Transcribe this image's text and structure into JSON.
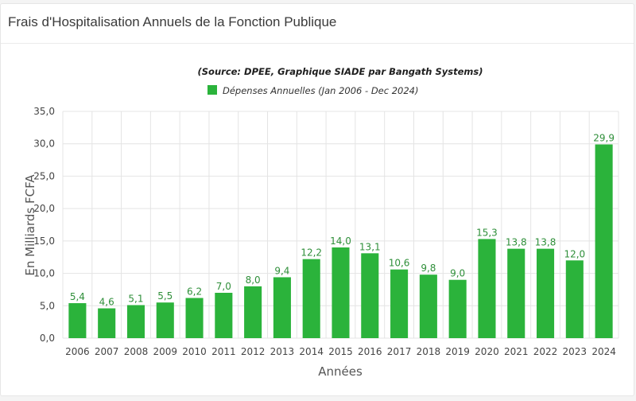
{
  "header": {
    "title": "Frais d'Hospitalisation Annuels de la Fonction Publique"
  },
  "chart_data": {
    "type": "bar",
    "subtitle": "(Source: DPEE, Graphique SIADE par Bangath Systems)",
    "legend": {
      "label": "Dépenses Annuelles (Jan 2006 - Dec 2024)",
      "position": "top"
    },
    "categories": [
      "2006",
      "2007",
      "2008",
      "2009",
      "2010",
      "2011",
      "2012",
      "2013",
      "2014",
      "2015",
      "2016",
      "2017",
      "2018",
      "2019",
      "2020",
      "2021",
      "2022",
      "2023",
      "2024"
    ],
    "series": [
      {
        "name": "Dépenses Annuelles (Jan 2006 - Dec 2024)",
        "values": [
          5.4,
          4.6,
          5.1,
          5.5,
          6.2,
          7.0,
          8.0,
          9.4,
          12.2,
          14.0,
          13.1,
          10.6,
          9.8,
          9.0,
          15.3,
          13.8,
          13.8,
          12.0,
          29.9
        ],
        "labels": [
          "5,4",
          "4,6",
          "5,1",
          "5,5",
          "6,2",
          "7,0",
          "8,0",
          "9,4",
          "12,2",
          "14,0",
          "13,1",
          "10,6",
          "9,8",
          "9,0",
          "15,3",
          "13,8",
          "13,8",
          "12,0",
          "29,9"
        ]
      }
    ],
    "xlabel": "Années",
    "ylabel": "En Milliards FCFA",
    "ylim": [
      0,
      35
    ],
    "yticks": [
      0,
      5,
      10,
      15,
      20,
      25,
      30,
      35
    ],
    "ytick_labels": [
      "0,0",
      "5,0",
      "10,0",
      "15,0",
      "20,0",
      "25,0",
      "30,0",
      "35,0"
    ],
    "grid": true,
    "colors": {
      "bar": "#2bb33b",
      "value_label": "#2f8f3a",
      "grid": "#e4e4e4"
    }
  }
}
